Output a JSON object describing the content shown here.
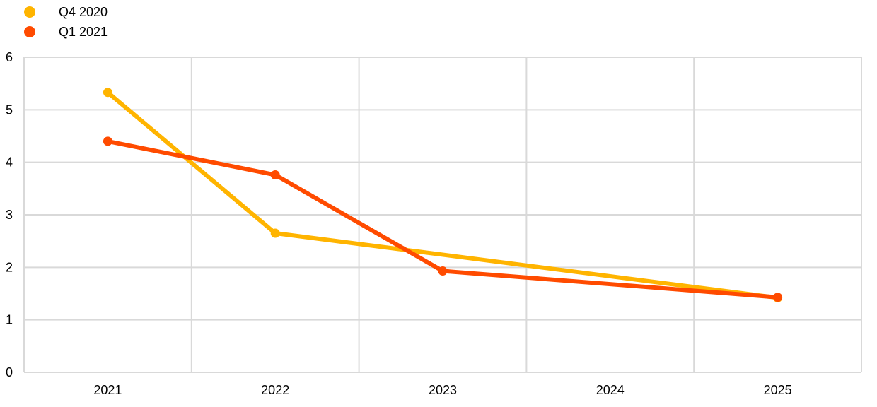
{
  "chart_data": {
    "type": "line",
    "title": "",
    "xlabel": "",
    "ylabel": "",
    "categories": [
      "2021",
      "2022",
      "2023",
      "2024",
      "2025"
    ],
    "ylim": [
      0,
      6
    ],
    "yticks": [
      0,
      1,
      2,
      3,
      4,
      5,
      6
    ],
    "grid": true,
    "legend_position": "top-left",
    "series": [
      {
        "name": "Q4 2020",
        "color": "#FFB400",
        "points": [
          {
            "x": "2021",
            "y": 5.33
          },
          {
            "x": "2022",
            "y": 2.65
          },
          {
            "x": "2025",
            "y": 1.42
          }
        ]
      },
      {
        "name": "Q1 2021",
        "color": "#FF4B00",
        "points": [
          {
            "x": "2021",
            "y": 4.4
          },
          {
            "x": "2022",
            "y": 3.76
          },
          {
            "x": "2023",
            "y": 1.93
          },
          {
            "x": "2025",
            "y": 1.43
          }
        ]
      }
    ]
  }
}
